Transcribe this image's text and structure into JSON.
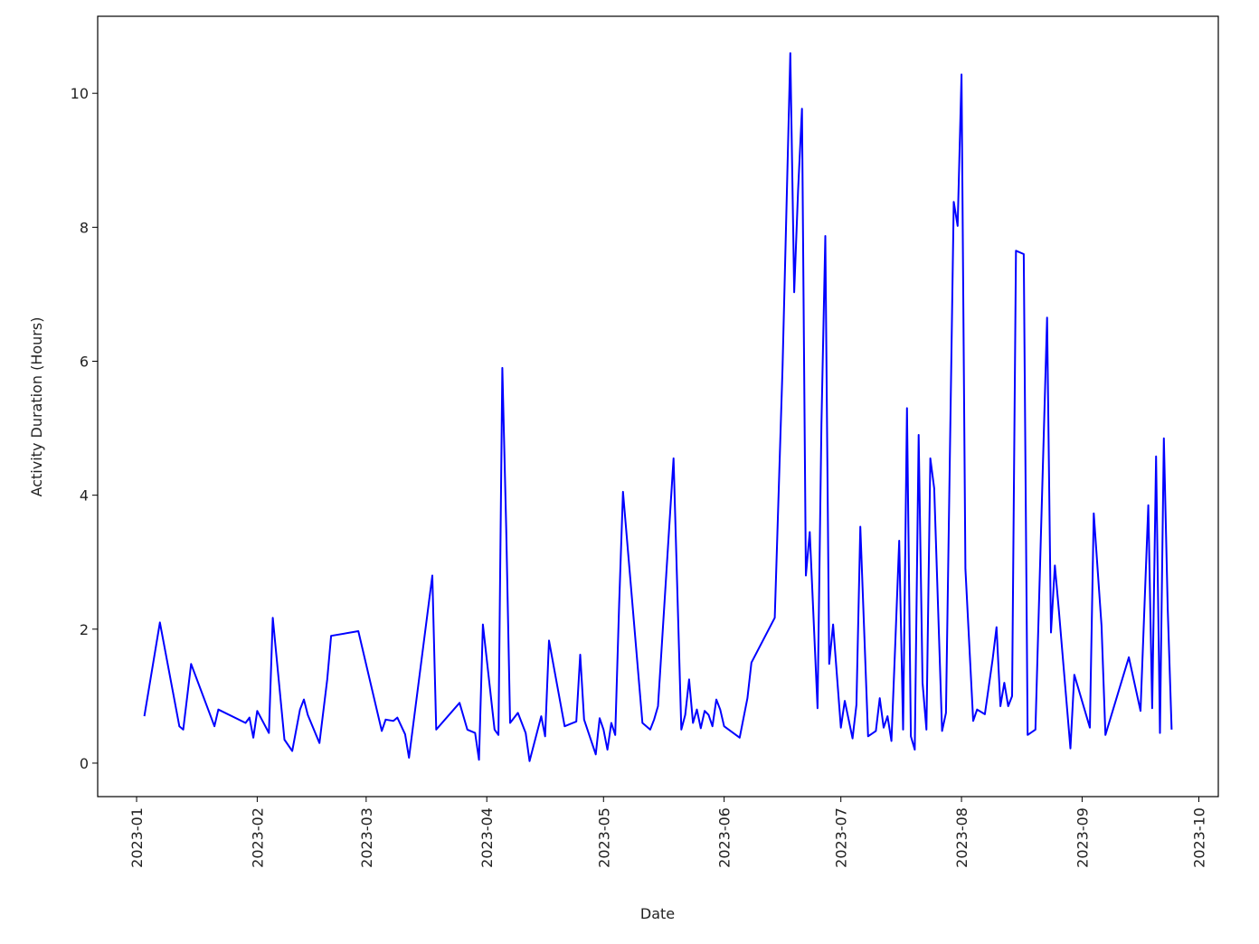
{
  "chart_data": {
    "type": "line",
    "xlabel": "Date",
    "ylabel": "Activity Duration (Hours)",
    "x": [
      "2023-01-03",
      "2023-01-07",
      "2023-01-12",
      "2023-01-13",
      "2023-01-15",
      "2023-01-21",
      "2023-01-22",
      "2023-01-29",
      "2023-01-30",
      "2023-01-31",
      "2023-02-01",
      "2023-02-04",
      "2023-02-05",
      "2023-02-08",
      "2023-02-10",
      "2023-02-12",
      "2023-02-13",
      "2023-02-14",
      "2023-02-17",
      "2023-02-19",
      "2023-02-20",
      "2023-02-27",
      "2023-03-05",
      "2023-03-06",
      "2023-03-08",
      "2023-03-09",
      "2023-03-11",
      "2023-03-12",
      "2023-03-18",
      "2023-03-19",
      "2023-03-25",
      "2023-03-27",
      "2023-03-29",
      "2023-03-30",
      "2023-03-31",
      "2023-04-03",
      "2023-04-04",
      "2023-04-05",
      "2023-04-06",
      "2023-04-07",
      "2023-04-09",
      "2023-04-11",
      "2023-04-12",
      "2023-04-15",
      "2023-04-16",
      "2023-04-17",
      "2023-04-21",
      "2023-04-24",
      "2023-04-25",
      "2023-04-26",
      "2023-04-29",
      "2023-04-30",
      "2023-05-01",
      "2023-05-02",
      "2023-05-03",
      "2023-05-04",
      "2023-05-05",
      "2023-05-06",
      "2023-05-11",
      "2023-05-13",
      "2023-05-14",
      "2023-05-15",
      "2023-05-19",
      "2023-05-21",
      "2023-05-22",
      "2023-05-23",
      "2023-05-24",
      "2023-05-25",
      "2023-05-26",
      "2023-05-27",
      "2023-05-28",
      "2023-05-29",
      "2023-05-30",
      "2023-05-31",
      "2023-06-01",
      "2023-06-05",
      "2023-06-07",
      "2023-06-08",
      "2023-06-14",
      "2023-06-16",
      "2023-06-18",
      "2023-06-19",
      "2023-06-20",
      "2023-06-21",
      "2023-06-22",
      "2023-06-23",
      "2023-06-25",
      "2023-06-26",
      "2023-06-27",
      "2023-06-28",
      "2023-06-29",
      "2023-07-01",
      "2023-07-02",
      "2023-07-04",
      "2023-07-05",
      "2023-07-06",
      "2023-07-08",
      "2023-07-10",
      "2023-07-11",
      "2023-07-12",
      "2023-07-13",
      "2023-07-14",
      "2023-07-15",
      "2023-07-16",
      "2023-07-17",
      "2023-07-18",
      "2023-07-19",
      "2023-07-20",
      "2023-07-21",
      "2023-07-22",
      "2023-07-23",
      "2023-07-24",
      "2023-07-25",
      "2023-07-27",
      "2023-07-28",
      "2023-07-30",
      "2023-07-31",
      "2023-08-01",
      "2023-08-02",
      "2023-08-04",
      "2023-08-05",
      "2023-08-07",
      "2023-08-09",
      "2023-08-10",
      "2023-08-11",
      "2023-08-12",
      "2023-08-13",
      "2023-08-14",
      "2023-08-15",
      "2023-08-17",
      "2023-08-18",
      "2023-08-20",
      "2023-08-23",
      "2023-08-24",
      "2023-08-25",
      "2023-08-26",
      "2023-08-29",
      "2023-08-30",
      "2023-09-03",
      "2023-09-04",
      "2023-09-06",
      "2023-09-07",
      "2023-09-13",
      "2023-09-16",
      "2023-09-18",
      "2023-09-19",
      "2023-09-20",
      "2023-09-21",
      "2023-09-22",
      "2023-09-23",
      "2023-09-24"
    ],
    "series": [
      {
        "name": "Activity Duration",
        "color": "#0000ff",
        "values": [
          0.7,
          2.1,
          0.55,
          0.5,
          1.48,
          0.55,
          0.8,
          0.6,
          0.68,
          0.38,
          0.78,
          0.45,
          2.17,
          0.35,
          0.18,
          0.8,
          0.95,
          0.72,
          0.3,
          1.25,
          1.9,
          1.97,
          0.48,
          0.65,
          0.63,
          0.68,
          0.43,
          0.08,
          2.8,
          0.5,
          0.9,
          0.5,
          0.45,
          0.05,
          2.07,
          0.5,
          0.42,
          5.9,
          3.5,
          0.6,
          0.75,
          0.45,
          0.03,
          0.7,
          0.4,
          1.83,
          0.55,
          0.62,
          1.62,
          0.65,
          0.13,
          0.67,
          0.5,
          0.2,
          0.6,
          0.42,
          2.35,
          4.05,
          0.6,
          0.5,
          0.65,
          0.85,
          4.55,
          0.5,
          0.72,
          1.25,
          0.6,
          0.8,
          0.52,
          0.78,
          0.72,
          0.55,
          0.95,
          0.8,
          0.55,
          0.38,
          0.97,
          1.5,
          2.17,
          5.9,
          10.6,
          7.03,
          8.55,
          9.77,
          2.8,
          3.45,
          0.82,
          5.05,
          7.87,
          1.48,
          2.07,
          0.53,
          0.93,
          0.37,
          0.87,
          3.53,
          0.4,
          0.48,
          0.97,
          0.53,
          0.7,
          0.33,
          1.8,
          3.32,
          0.5,
          5.3,
          0.4,
          0.2,
          4.9,
          1.2,
          0.5,
          4.55,
          4.1,
          0.48,
          0.75,
          8.38,
          8.02,
          10.28,
          2.9,
          0.63,
          0.8,
          0.73,
          1.55,
          2.03,
          0.85,
          1.2,
          0.85,
          1.0,
          7.65,
          7.6,
          0.42,
          0.5,
          6.65,
          1.95,
          2.95,
          2.3,
          0.22,
          1.32,
          0.53,
          3.73,
          2.05,
          0.42,
          1.58,
          0.78,
          3.85,
          0.82,
          4.58,
          0.45,
          4.85,
          2.3,
          0.5
        ]
      }
    ],
    "xlim": [
      "2022-12-22",
      "2023-10-06"
    ],
    "xticks": [
      "2023-01",
      "2023-02",
      "2023-03",
      "2023-04",
      "2023-05",
      "2023-06",
      "2023-07",
      "2023-08",
      "2023-09",
      "2023-10"
    ],
    "ylim": [
      -0.5,
      11.15
    ],
    "yticks": [
      0,
      2,
      4,
      6,
      8,
      10
    ]
  }
}
